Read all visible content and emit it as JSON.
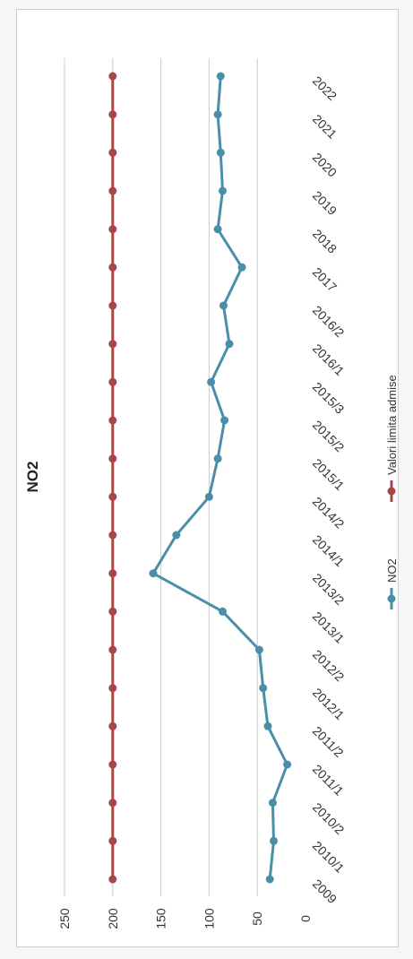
{
  "chart_data": {
    "type": "line",
    "title": "NO2",
    "categories": [
      "2009",
      "2010/1",
      "2010/2",
      "2011/1",
      "2011/2",
      "2012/1",
      "2012/2",
      "2013/1",
      "2013/2",
      "2014/1",
      "2014/2",
      "2015/1",
      "2015/2",
      "2015/3",
      "2016/1",
      "2016/2",
      "2017",
      "2018",
      "2019",
      "2020",
      "2021",
      "2022"
    ],
    "series": [
      {
        "name": "NO2",
        "color": "#4a8ea8",
        "values": [
          37,
          33,
          34,
          19,
          39,
          44,
          48,
          86,
          158,
          134,
          100,
          91,
          84,
          98,
          79,
          85,
          66,
          91,
          86,
          88,
          91,
          88
        ]
      },
      {
        "name": "Valori limita admise",
        "color": "#a54848",
        "values": [
          200,
          200,
          200,
          200,
          200,
          200,
          200,
          200,
          200,
          200,
          200,
          200,
          200,
          200,
          200,
          200,
          200,
          200,
          200,
          200,
          200,
          200
        ]
      }
    ],
    "y_ticks": [
      "0",
      "50",
      "100",
      "150",
      "200",
      "250"
    ],
    "ylim": [
      0,
      250
    ],
    "grid": true,
    "legend_position": "bottom",
    "orientation": "rotated-90"
  }
}
